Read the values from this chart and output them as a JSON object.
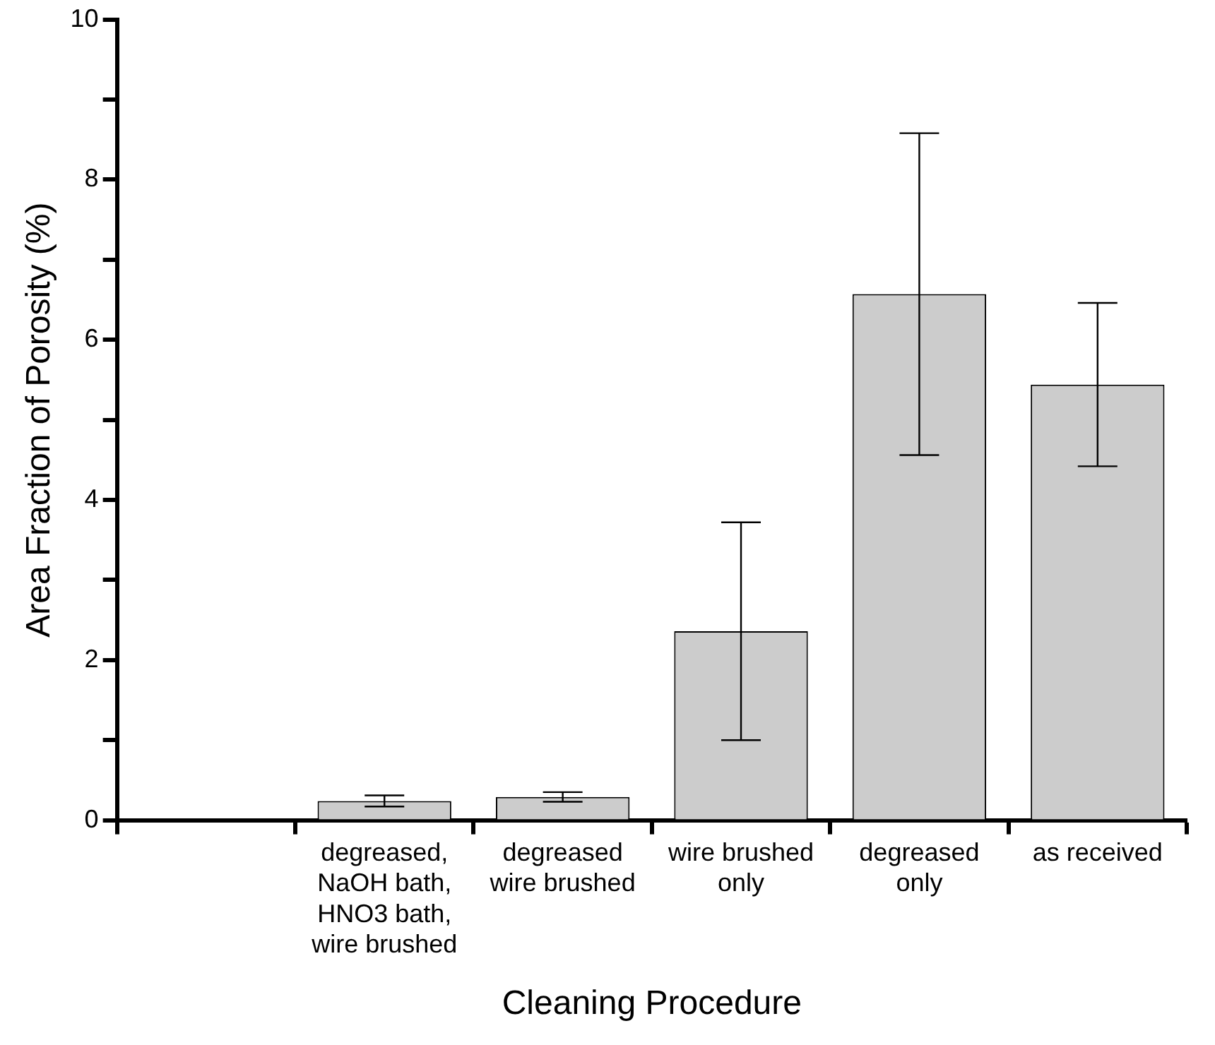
{
  "chart_data": {
    "type": "bar",
    "xlabel": "Cleaning Procedure",
    "ylabel": "Area Fraction of Porosity (%)",
    "categories": [
      null,
      "degreased, NaOH bath, HNO3 bath, wire brushed",
      "degreased wire brushed",
      "wire brushed only",
      "degreased only",
      "as received"
    ],
    "values": [
      null,
      0.24,
      0.29,
      2.36,
      6.57,
      5.44
    ],
    "errors": [
      null,
      0.07,
      0.06,
      1.36,
      2.01,
      1.02
    ],
    "color": "#cccccc",
    "ylim": [
      0,
      10
    ],
    "yticks": [
      0,
      {
        "value": 1,
        "label": null
      },
      2,
      {
        "value": 3,
        "label": null
      },
      4,
      {
        "value": 5,
        "label": null
      },
      6,
      {
        "value": 7,
        "label": null
      },
      8,
      {
        "value": 9,
        "label": null
      },
      10
    ],
    "grid": false,
    "legend": false
  }
}
